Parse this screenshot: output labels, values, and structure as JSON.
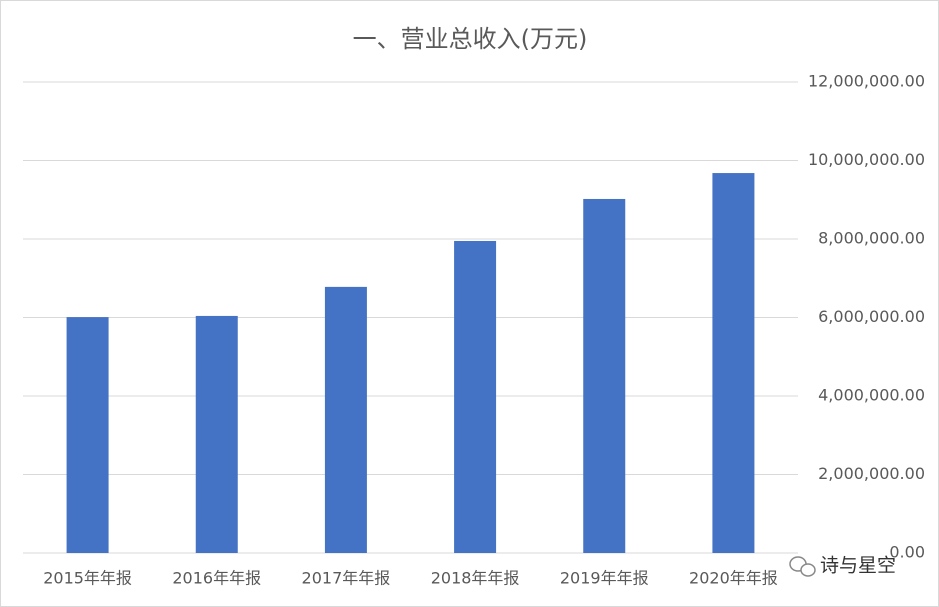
{
  "chart_data": {
    "type": "bar",
    "title": "一、营业总收入(万元)",
    "categories": [
      "2015年年报",
      "2016年年报",
      "2017年年报",
      "2018年年报",
      "2019年年报",
      "2020年年报"
    ],
    "values": [
      6010000,
      6040000,
      6780000,
      7950000,
      9020000,
      9680000
    ],
    "color": "#4472c4",
    "ylim": [
      0,
      12000000
    ],
    "yticks": [
      {
        "value": 0,
        "label": "0.00"
      },
      {
        "value": 2000000,
        "label": "2,000,000.00"
      },
      {
        "value": 4000000,
        "label": "4,000,000.00"
      },
      {
        "value": 6000000,
        "label": "6,000,000.00"
      },
      {
        "value": 8000000,
        "label": "8,000,000.00"
      },
      {
        "value": 10000000,
        "label": "10,000,000.00"
      },
      {
        "value": 12000000,
        "label": "12,000,000.00"
      }
    ],
    "grid": true,
    "annotation": "诗与星空"
  }
}
